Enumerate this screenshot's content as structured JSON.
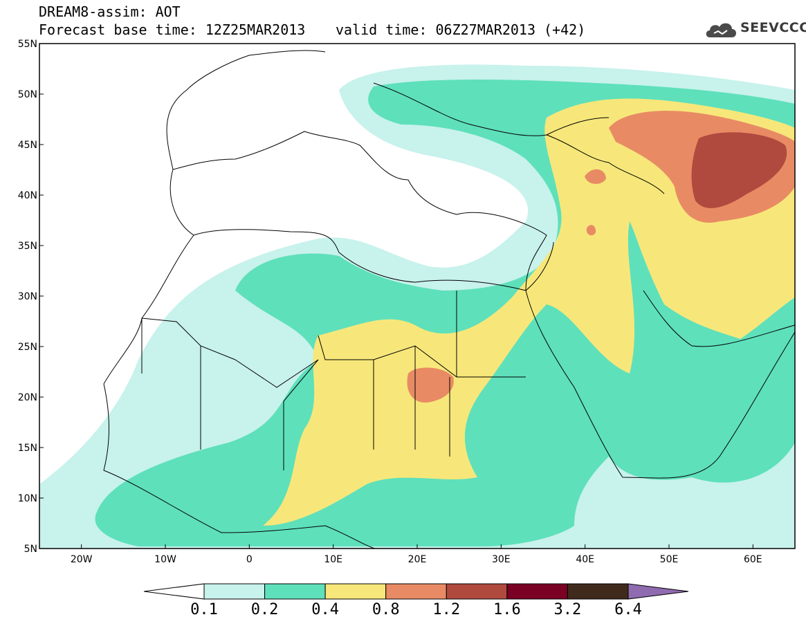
{
  "header": {
    "line1": "DREAM8-assim: AOT",
    "line2": "Forecast base time: 12Z25MAR2013",
    "valid": "valid time: 06Z27MAR2013 (+42)"
  },
  "logo": {
    "text": "SEEVCCC",
    "icon": "cloud-icon"
  },
  "map": {
    "lon_range": [
      -25,
      65
    ],
    "lat_range": [
      5,
      55
    ],
    "lon_ticks": [
      "20W",
      "10W",
      "0",
      "10E",
      "20E",
      "30E",
      "40E",
      "50E",
      "60E"
    ],
    "lat_ticks": [
      "55N",
      "50N",
      "45N",
      "40N",
      "35N",
      "30N",
      "25N",
      "20N",
      "15N",
      "10N",
      "5N"
    ]
  },
  "colorbar": {
    "labels": [
      "0.1",
      "0.2",
      "0.4",
      "0.8",
      "1.2",
      "1.6",
      "3.2",
      "6.4"
    ],
    "colors": [
      "#ffffff",
      "#c8f2ec",
      "#5ee0bb",
      "#f7e77a",
      "#e88b64",
      "#b04a3f",
      "#7a0024",
      "#3f2a1c",
      "#8f6bb0"
    ]
  },
  "colors": {
    "c01": "#c8f2ec",
    "c02": "#5ee0bb",
    "c04": "#f7e77a",
    "c08": "#e88b64",
    "c12": "#b04a3f"
  }
}
